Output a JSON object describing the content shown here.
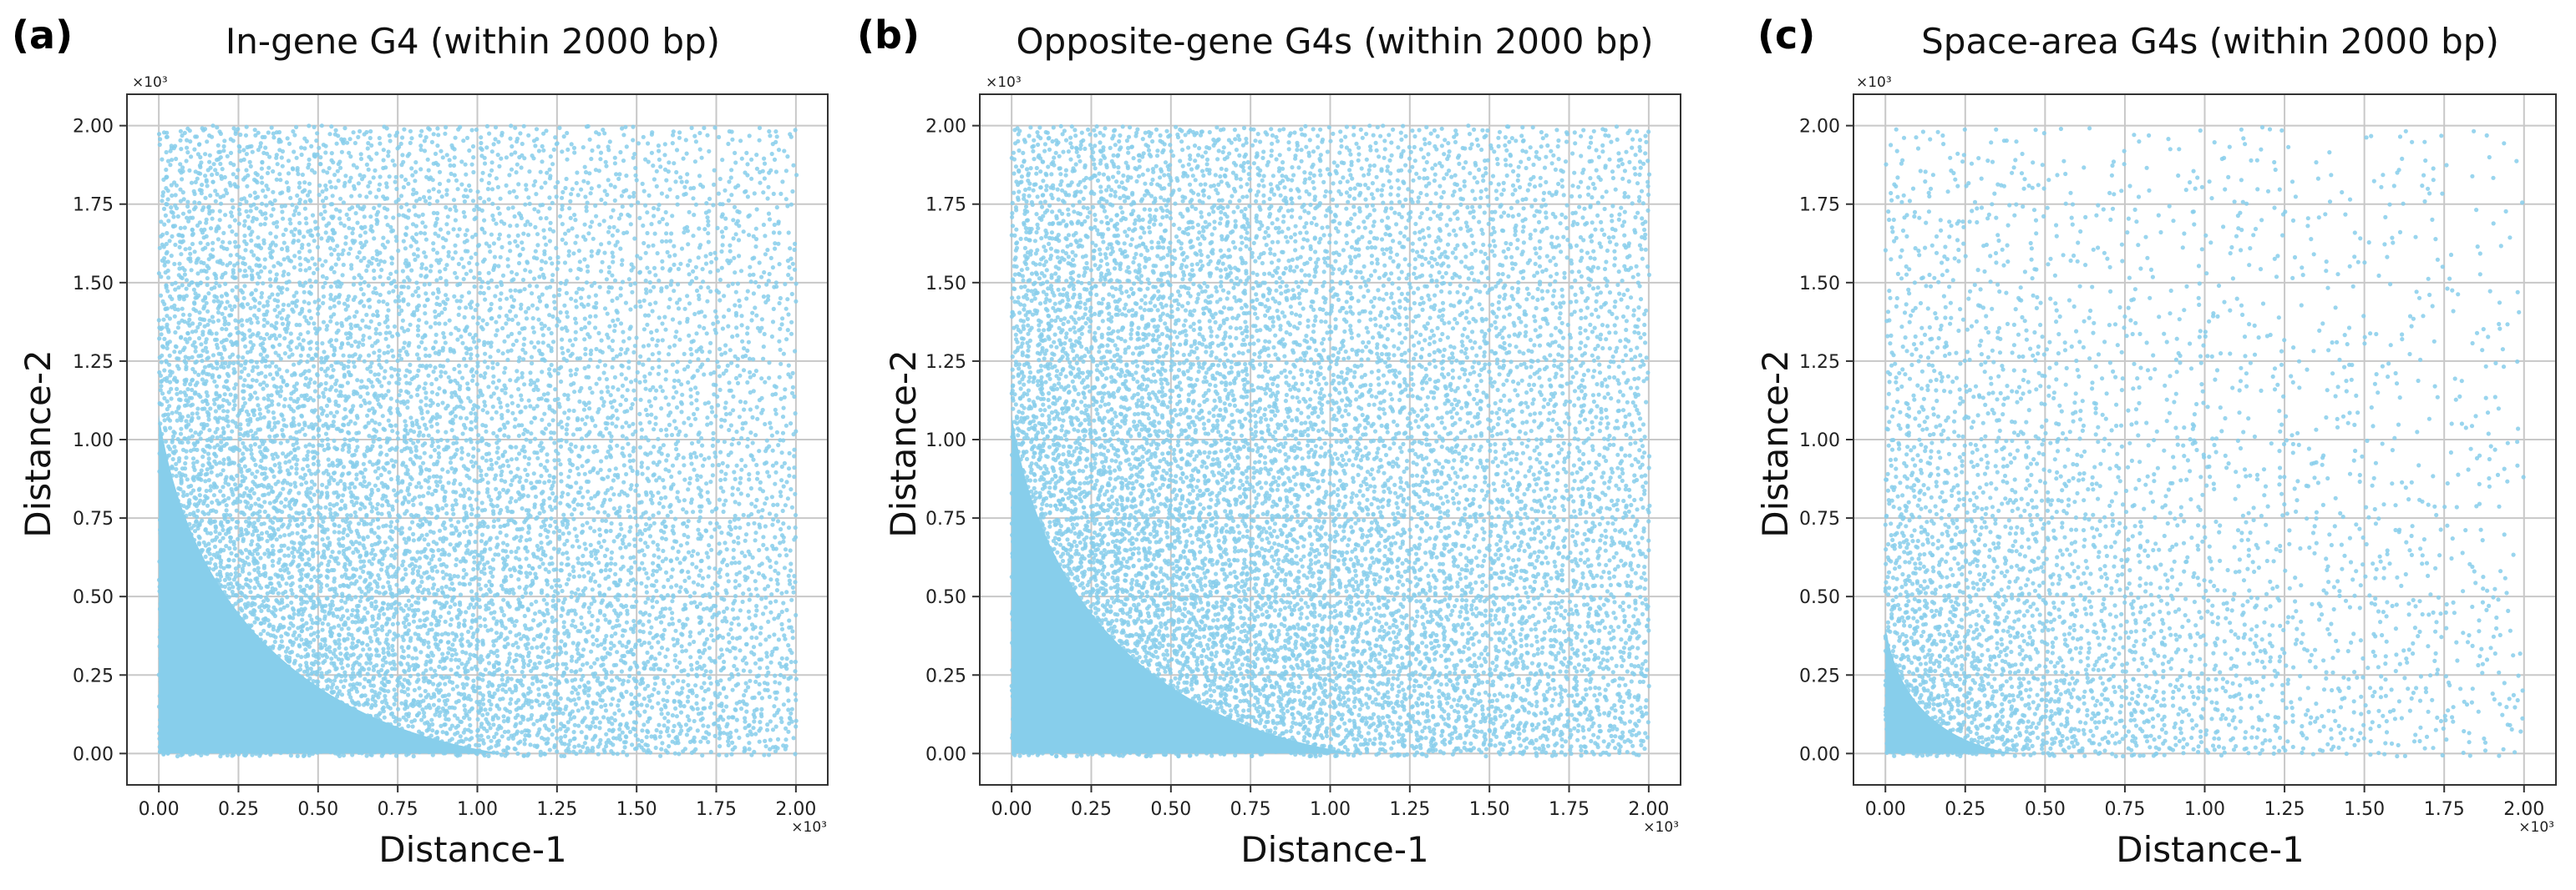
{
  "chart_data": [
    {
      "type": "scatter",
      "panel_label": "(a)",
      "title": "In-gene G4 (within 2000 bp)",
      "xlabel": "Distance-1",
      "ylabel": "Distance-2",
      "xlim": [
        -100,
        2100
      ],
      "ylim": [
        -100,
        2100
      ],
      "x_scale_label": "×10³",
      "y_scale_label": "×10³",
      "xticks": [
        0,
        250,
        500,
        750,
        1000,
        1250,
        1500,
        1750,
        2000
      ],
      "yticks": [
        0,
        250,
        500,
        750,
        1000,
        1250,
        1500,
        1750,
        2000
      ],
      "xtick_labels": [
        "0.00",
        "0.25",
        "0.50",
        "0.75",
        "1.00",
        "1.25",
        "1.50",
        "1.75",
        "2.00"
      ],
      "ytick_labels": [
        "0.00",
        "0.25",
        "0.50",
        "0.75",
        "1.00",
        "1.25",
        "1.50",
        "1.75",
        "2.00"
      ],
      "grid": true,
      "marker_color": "#87ceeb",
      "density": {
        "decay": 1750,
        "base": 0.06,
        "uniform_fill": 120
      }
    },
    {
      "type": "scatter",
      "panel_label": "(b)",
      "title": "Opposite-gene G4s (within 2000 bp)",
      "xlabel": "Distance-1",
      "ylabel": "Distance-2",
      "xlim": [
        -100,
        2100
      ],
      "ylim": [
        -100,
        2100
      ],
      "x_scale_label": "×10³",
      "y_scale_label": "×10³",
      "xticks": [
        0,
        250,
        500,
        750,
        1000,
        1250,
        1500,
        1750,
        2000
      ],
      "yticks": [
        0,
        250,
        500,
        750,
        1000,
        1250,
        1500,
        1750,
        2000
      ],
      "xtick_labels": [
        "0.00",
        "0.25",
        "0.50",
        "0.75",
        "1.00",
        "1.25",
        "1.50",
        "1.75",
        "2.00"
      ],
      "ytick_labels": [
        "0.00",
        "0.25",
        "0.50",
        "0.75",
        "1.00",
        "1.25",
        "1.50",
        "1.75",
        "2.00"
      ],
      "grid": true,
      "marker_color": "#87ceeb",
      "density": {
        "decay": 2000,
        "base": 0.08,
        "uniform_fill": 120
      }
    },
    {
      "type": "scatter",
      "panel_label": "(c)",
      "title": "Space-area G4s (within 2000 bp)",
      "xlabel": "Distance-1",
      "ylabel": "Distance-2",
      "xlim": [
        -100,
        2100
      ],
      "ylim": [
        -100,
        2100
      ],
      "x_scale_label": "×10³",
      "y_scale_label": "×10³",
      "xticks": [
        0,
        250,
        500,
        750,
        1000,
        1250,
        1500,
        1750,
        2000
      ],
      "yticks": [
        0,
        250,
        500,
        750,
        1000,
        1250,
        1500,
        1750,
        2000
      ],
      "xtick_labels": [
        "0.00",
        "0.25",
        "0.50",
        "0.75",
        "1.00",
        "1.25",
        "1.50",
        "1.75",
        "2.00"
      ],
      "ytick_labels": [
        "0.00",
        "0.25",
        "0.50",
        "0.75",
        "1.00",
        "1.25",
        "1.50",
        "1.75",
        "2.00"
      ],
      "grid": true,
      "marker_color": "#87ceeb",
      "density": {
        "decay": 850,
        "base": 0.015,
        "uniform_fill": 45
      }
    }
  ]
}
